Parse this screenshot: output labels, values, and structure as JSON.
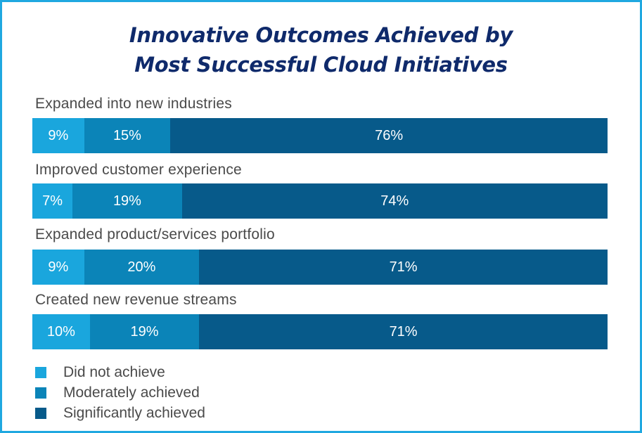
{
  "chart_data": {
    "type": "bar",
    "orientation": "horizontal",
    "stacked": true,
    "title": "Innovative Outcomes Achieved by Most Successful Cloud Initiatives",
    "title_lines": [
      "Innovative Outcomes Achieved by",
      "Most Successful Cloud Initiatives"
    ],
    "categories": [
      "Expanded into new industries",
      "Improved customer experience",
      "Expanded product/services portfolio",
      "Created new revenue streams"
    ],
    "series": [
      {
        "name": "Did not achieve",
        "values": [
          9,
          7,
          9,
          10
        ],
        "labels": [
          "9%",
          "7%",
          "9%",
          "10%"
        ],
        "color": "#1aa6dd"
      },
      {
        "name": "Moderately achieved",
        "values": [
          15,
          19,
          20,
          19
        ],
        "labels": [
          "15%",
          "19%",
          "20%",
          "19%"
        ],
        "color": "#0b84b8"
      },
      {
        "name": "Significantly achieved",
        "values": [
          76,
          74,
          71,
          71
        ],
        "labels": [
          "76%",
          "74%",
          "71%",
          "71%"
        ],
        "color": "#075a8a"
      }
    ],
    "unit": "%",
    "xlim": [
      0,
      100
    ],
    "legend_position": "bottom-left",
    "grid": false
  }
}
